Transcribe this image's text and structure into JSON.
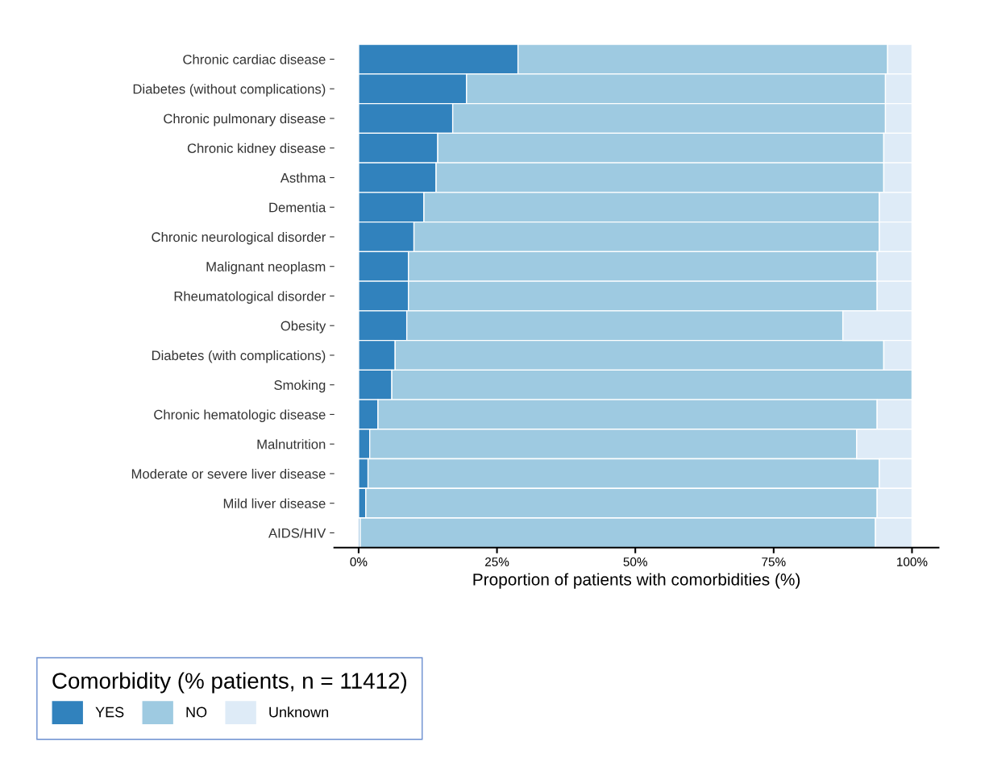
{
  "chart_data": {
    "type": "bar",
    "orientation": "horizontal",
    "stacked": true,
    "xlabel": "Proportion of patients with comorbidities (%)",
    "legend_title": "Comorbidity (% patients, n = 11412)",
    "legend": "bottom",
    "grid": false,
    "categories": [
      "Chronic cardiac disease",
      "Diabetes (without complications)",
      "Chronic pulmonary disease",
      "Chronic kidney disease",
      "Asthma",
      "Dementia",
      "Chronic neurological disorder",
      "Malignant neoplasm",
      "Rheumatological disorder",
      "Obesity",
      "Diabetes (with complications)",
      "Smoking",
      "Chronic hematologic disease",
      "Malnutrition",
      "Moderate or severe liver disease",
      "Mild liver disease",
      "AIDS/HIV"
    ],
    "series": [
      {
        "name": "YES",
        "color": "#3182bd",
        "values": [
          28.8,
          19.5,
          17.0,
          14.3,
          14.0,
          11.8,
          10.0,
          9.0,
          9.0,
          8.7,
          6.6,
          6.0,
          3.5,
          2.0,
          1.7,
          1.3,
          0.3
        ]
      },
      {
        "name": "NO",
        "color": "#9ecae1",
        "values": [
          66.8,
          75.7,
          78.2,
          80.6,
          80.9,
          82.3,
          84.1,
          84.7,
          84.7,
          78.8,
          88.3,
          94.0,
          90.2,
          88.0,
          92.4,
          92.4,
          93.1
        ]
      },
      {
        "name": "Unknown",
        "color": "#deebf7",
        "values": [
          4.4,
          4.8,
          4.8,
          5.1,
          5.1,
          5.9,
          5.9,
          6.3,
          6.3,
          12.5,
          5.1,
          0.0,
          6.3,
          10.0,
          5.9,
          6.3,
          6.6
        ]
      }
    ],
    "xlim": [
      -4.4,
      104.8
    ],
    "xticks": [
      {
        "value": 0,
        "label": "0%"
      },
      {
        "value": 25,
        "label": "25%"
      },
      {
        "value": 50,
        "label": "50%"
      },
      {
        "value": 75,
        "label": "75%"
      },
      {
        "value": 100,
        "label": "100%"
      }
    ]
  }
}
